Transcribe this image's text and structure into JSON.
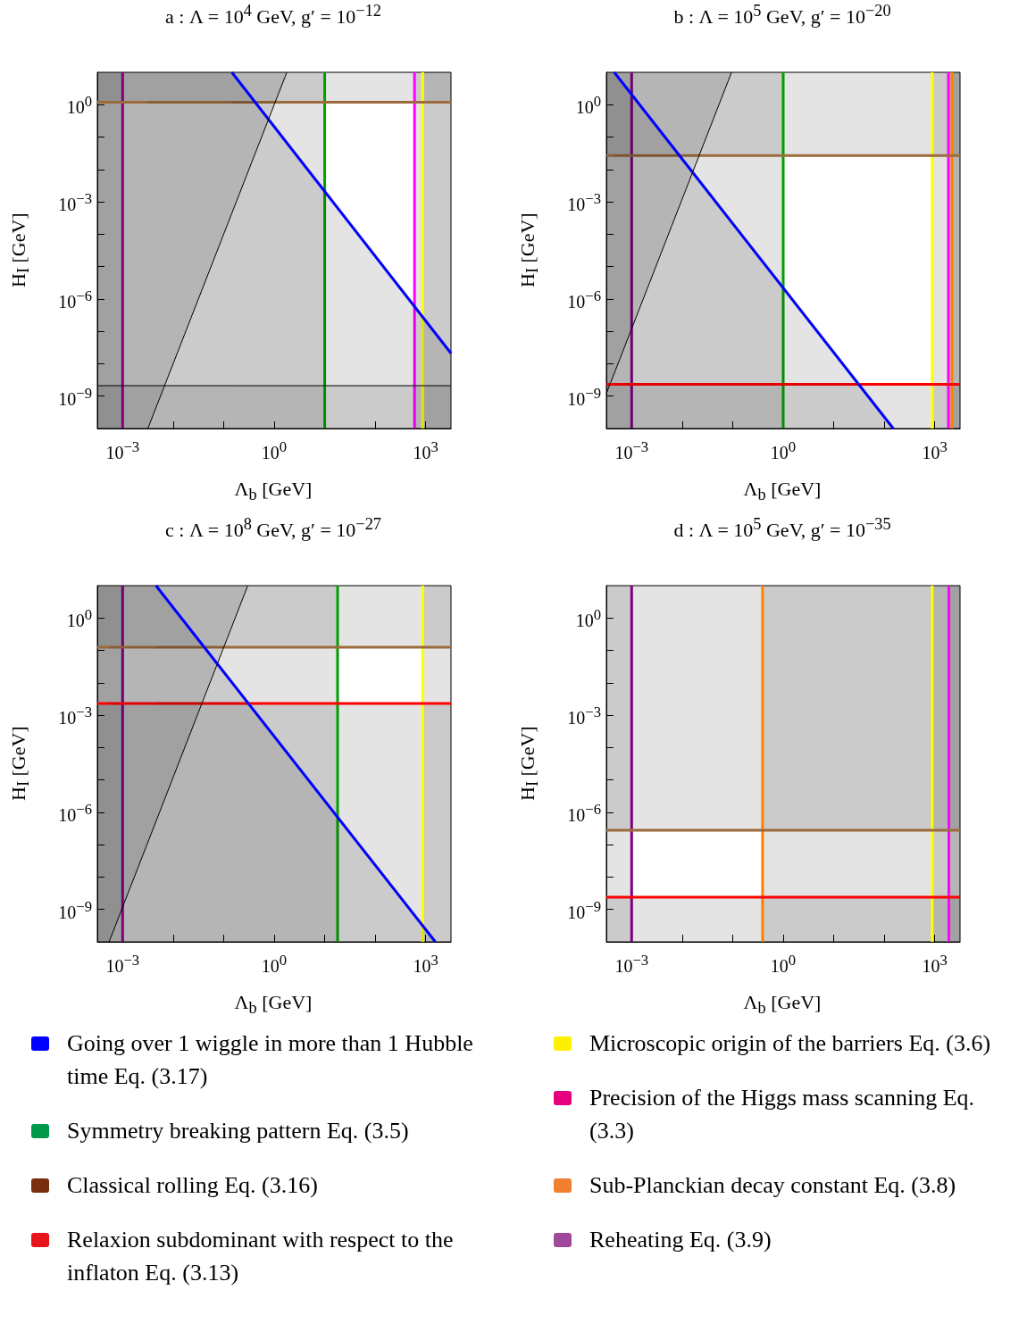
{
  "chart_data": [
    {
      "type": "line",
      "title": "a : Λ = 10$^{4}$ GeV, g′ = 10$^{−12}$",
      "xlabel": "Λ$_{b}$ [GeV]",
      "ylabel": "H$_{I}$ [GeV]",
      "log": "xy",
      "xlim": [
        0.000316,
        3160
      ],
      "ylim": [
        1e-10,
        10
      ],
      "xticks": [
        {
          "value": 0.001,
          "label": "10$^{−3}$"
        },
        {
          "value": 0.01,
          "label": null
        },
        {
          "value": 0.1,
          "label": null
        },
        {
          "value": 1,
          "label": "10$^{0}$"
        },
        {
          "value": 10,
          "label": null
        },
        {
          "value": 100,
          "label": null
        },
        {
          "value": 1000,
          "label": "10$^{3}$"
        }
      ],
      "yticks": [
        {
          "value": 1e-09,
          "label": "10$^{−9}$"
        },
        {
          "value": 1e-08,
          "label": null
        },
        {
          "value": 1e-07,
          "label": null
        },
        {
          "value": 1e-06,
          "label": "10$^{−6}$"
        },
        {
          "value": 1e-05,
          "label": null
        },
        {
          "value": 0.0001,
          "label": null
        },
        {
          "value": 0.001,
          "label": "10$^{−3}$"
        },
        {
          "value": 0.01,
          "label": null
        },
        {
          "value": 0.1,
          "label": null
        },
        {
          "value": 1,
          "label": "10$^{0}$"
        }
      ],
      "series": [
        {
          "type": "area",
          "color": "#0000ff",
          "x": [
            0.145,
            3160
          ],
          "values": [
            10,
            2.1e-08
          ]
        },
        {
          "type": "area",
          "color": "#000000",
          "x": [
            0.00316,
            1.78
          ],
          "values": [
            1e-10,
            10
          ]
        }
      ],
      "ref_lines": [
        {
          "axis": "x",
          "value": 0.001,
          "color": "#800080"
        },
        {
          "axis": "x",
          "value": 10,
          "color": "#00a000"
        },
        {
          "axis": "x",
          "value": 600,
          "color": "#ff00ff"
        },
        {
          "axis": "x",
          "value": 870,
          "color": "#ffff00"
        },
        {
          "axis": "y",
          "value": 1.2,
          "color": "#9c6b3c"
        },
        {
          "axis": "y",
          "value": 2.1e-09,
          "color": "#000000"
        }
      ],
      "bands": [
        {
          "axis": "x",
          "from": 0.000316,
          "to": 0.001
        },
        {
          "axis": "x",
          "from": 0.000316,
          "to": 10
        },
        {
          "axis": "x",
          "from": 600,
          "to": 3160
        },
        {
          "axis": "x",
          "from": 870,
          "to": 3160
        },
        {
          "axis": "y",
          "from": 1.2,
          "to": 10
        },
        {
          "axis": "y",
          "from": 1e-10,
          "to": 2.1e-09
        },
        {
          "axis": "x",
          "from": 0.000316,
          "to": 0.145
        },
        {
          "axis": "x",
          "from": 0.000316,
          "to": 0.00316
        }
      ]
    },
    {
      "type": "line",
      "title": "b : Λ = 10$^{5}$ GeV, g′ = 10$^{−20}$",
      "xlabel": "Λ$_{b}$ [GeV]",
      "ylabel": "H$_{I}$ [GeV]",
      "log": "xy",
      "xlim": [
        0.000316,
        3160
      ],
      "ylim": [
        1e-10,
        10
      ],
      "xticks": [
        {
          "value": 0.001,
          "label": "10$^{−3}$"
        },
        {
          "value": 0.01,
          "label": null
        },
        {
          "value": 0.1,
          "label": null
        },
        {
          "value": 1,
          "label": "10$^{0}$"
        },
        {
          "value": 10,
          "label": null
        },
        {
          "value": 100,
          "label": null
        },
        {
          "value": 1000,
          "label": "10$^{3}$"
        }
      ],
      "yticks": [
        {
          "value": 1e-09,
          "label": "10$^{−9}$"
        },
        {
          "value": 1e-08,
          "label": null
        },
        {
          "value": 1e-07,
          "label": null
        },
        {
          "value": 1e-06,
          "label": "10$^{−6}$"
        },
        {
          "value": 1e-05,
          "label": null
        },
        {
          "value": 0.0001,
          "label": null
        },
        {
          "value": 0.001,
          "label": "10$^{−3}$"
        },
        {
          "value": 0.01,
          "label": null
        },
        {
          "value": 0.1,
          "label": null
        },
        {
          "value": 1,
          "label": "10$^{0}$"
        }
      ],
      "series": [
        {
          "type": "area",
          "color": "#0000ff",
          "x": [
            0.000452,
            151
          ],
          "values": [
            10,
            1e-10
          ]
        },
        {
          "type": "area",
          "color": "#000000",
          "x": [
            0.000316,
            0.095
          ],
          "values": [
            1.2e-09,
            10
          ]
        }
      ],
      "ref_lines": [
        {
          "axis": "x",
          "value": 0.001,
          "color": "#800080"
        },
        {
          "axis": "x",
          "value": 1,
          "color": "#00a000"
        },
        {
          "axis": "x",
          "value": 890,
          "color": "#ffff00"
        },
        {
          "axis": "x",
          "value": 1860,
          "color": "#ff00ff"
        },
        {
          "axis": "x",
          "value": 2190,
          "color": "#ff8000"
        },
        {
          "axis": "y",
          "value": 0.027,
          "color": "#9c6b3c"
        },
        {
          "axis": "y",
          "value": 2.3e-09,
          "color": "#ff0000"
        }
      ],
      "bands": [
        {
          "axis": "x",
          "from": 0.000316,
          "to": 0.001
        },
        {
          "axis": "x",
          "from": 0.000316,
          "to": 1
        },
        {
          "axis": "x",
          "from": 890,
          "to": 3160
        },
        {
          "axis": "x",
          "from": 1860,
          "to": 3160
        },
        {
          "axis": "x",
          "from": 2190,
          "to": 3160
        },
        {
          "axis": "y",
          "from": 0.027,
          "to": 10
        },
        {
          "axis": "y",
          "from": 1e-10,
          "to": 2.3e-09
        },
        {
          "axis": "x",
          "from": 0.000316,
          "to": 0.000452
        }
      ]
    },
    {
      "type": "line",
      "title": "c : Λ = 10$^{8}$ GeV, g′ = 10$^{−27}$",
      "xlabel": "Λ$_{b}$ [GeV]",
      "ylabel": "H$_{I}$ [GeV]",
      "log": "xy",
      "xlim": [
        0.000316,
        3160
      ],
      "ylim": [
        1e-10,
        10
      ],
      "xticks": [
        {
          "value": 0.001,
          "label": "10$^{−3}$"
        },
        {
          "value": 0.01,
          "label": null
        },
        {
          "value": 0.1,
          "label": null
        },
        {
          "value": 1,
          "label": "10$^{0}$"
        },
        {
          "value": 10,
          "label": null
        },
        {
          "value": 100,
          "label": null
        },
        {
          "value": 1000,
          "label": "10$^{3}$"
        }
      ],
      "yticks": [
        {
          "value": 1e-09,
          "label": "10$^{−9}$"
        },
        {
          "value": 1e-08,
          "label": null
        },
        {
          "value": 1e-07,
          "label": null
        },
        {
          "value": 1e-06,
          "label": "10$^{−6}$"
        },
        {
          "value": 1e-05,
          "label": null
        },
        {
          "value": 0.0001,
          "label": null
        },
        {
          "value": 0.001,
          "label": "10$^{−3}$"
        },
        {
          "value": 0.01,
          "label": null
        },
        {
          "value": 0.1,
          "label": null
        },
        {
          "value": 1,
          "label": "10$^{0}$"
        }
      ],
      "series": [
        {
          "type": "area",
          "color": "#0000ff",
          "x": [
            0.00457,
            1550
          ],
          "values": [
            10,
            1e-10
          ]
        },
        {
          "type": "area",
          "color": "#000000",
          "x": [
            0.00054,
            0.3
          ],
          "values": [
            1e-10,
            10
          ]
        }
      ],
      "ref_lines": [
        {
          "axis": "x",
          "value": 0.001,
          "color": "#800080"
        },
        {
          "axis": "x",
          "value": 18,
          "color": "#00a000"
        },
        {
          "axis": "x",
          "value": 870,
          "color": "#ffff00"
        },
        {
          "axis": "y",
          "value": 0.126,
          "color": "#9c6b3c"
        },
        {
          "axis": "y",
          "value": 0.0023,
          "color": "#ff0000"
        }
      ],
      "bands": [
        {
          "axis": "x",
          "from": 0.000316,
          "to": 0.001
        },
        {
          "axis": "x",
          "from": 0.000316,
          "to": 18
        },
        {
          "axis": "x",
          "from": 870,
          "to": 3160
        },
        {
          "axis": "y",
          "from": 0.126,
          "to": 10
        },
        {
          "axis": "y",
          "from": 1e-10,
          "to": 0.0023
        },
        {
          "axis": "x",
          "from": 0.000316,
          "to": 0.00457
        },
        {
          "axis": "x",
          "from": 0.000316,
          "to": 0.00054
        }
      ]
    },
    {
      "type": "line",
      "title": "d : Λ = 10$^{5}$ GeV, g′ = 10$^{−35}$",
      "xlabel": "Λ$_{b}$ [GeV]",
      "ylabel": "H$_{I}$ [GeV]",
      "log": "xy",
      "xlim": [
        0.000316,
        3160
      ],
      "ylim": [
        1e-10,
        10
      ],
      "xticks": [
        {
          "value": 0.001,
          "label": "10$^{−3}$"
        },
        {
          "value": 0.01,
          "label": null
        },
        {
          "value": 0.1,
          "label": null
        },
        {
          "value": 1,
          "label": "10$^{0}$"
        },
        {
          "value": 10,
          "label": null
        },
        {
          "value": 100,
          "label": null
        },
        {
          "value": 1000,
          "label": "10$^{3}$"
        }
      ],
      "yticks": [
        {
          "value": 1e-09,
          "label": "10$^{−9}$"
        },
        {
          "value": 1e-08,
          "label": null
        },
        {
          "value": 1e-07,
          "label": null
        },
        {
          "value": 1e-06,
          "label": "10$^{−6}$"
        },
        {
          "value": 1e-05,
          "label": null
        },
        {
          "value": 0.0001,
          "label": null
        },
        {
          "value": 0.001,
          "label": "10$^{−3}$"
        },
        {
          "value": 0.01,
          "label": null
        },
        {
          "value": 0.1,
          "label": null
        },
        {
          "value": 1,
          "label": "10$^{0}$"
        }
      ],
      "ref_lines": [
        {
          "axis": "x",
          "value": 0.001,
          "color": "#800080"
        },
        {
          "axis": "x",
          "value": 0.39,
          "color": "#ff8000"
        },
        {
          "axis": "x",
          "value": 890,
          "color": "#ffff00"
        },
        {
          "axis": "x",
          "value": 1900,
          "color": "#ff00ff"
        },
        {
          "axis": "y",
          "value": 2.8e-07,
          "color": "#9c6b3c"
        },
        {
          "axis": "y",
          "value": 2.4e-09,
          "color": "#ff0000"
        }
      ],
      "bands": [
        {
          "axis": "x",
          "from": 0.000316,
          "to": 0.001
        },
        {
          "axis": "x",
          "from": 0.39,
          "to": 3160
        },
        {
          "axis": "x",
          "from": 890,
          "to": 3160
        },
        {
          "axis": "x",
          "from": 1900,
          "to": 3160
        },
        {
          "axis": "y",
          "from": 2.8e-07,
          "to": 10
        },
        {
          "axis": "y",
          "from": 1e-10,
          "to": 2.4e-09
        }
      ]
    },
    {
      "type": "other",
      "categories": [
        "Going over 1 wiggle in more than 1 Hubble time Eq. (3.17)",
        "Symmetry breaking pattern Eq. (3.5)",
        "Classical rolling Eq. (3.16)",
        "Relaxion subdominant with respect to the inflaton Eq. (3.13)",
        "Microscopic origin of the barriers Eq. (3.6)",
        "Precision of the Higgs mass scanning Eq. (3.3)",
        "Sub-Planckian decay constant Eq. (3.8)",
        "Reheating Eq. (3.9)"
      ],
      "colors": [
        "#0000ff",
        "#00994c",
        "#7b2e0e",
        "#e8141c",
        "#ffef00",
        "#e6007e",
        "#f08030",
        "#a0489a"
      ]
    }
  ]
}
